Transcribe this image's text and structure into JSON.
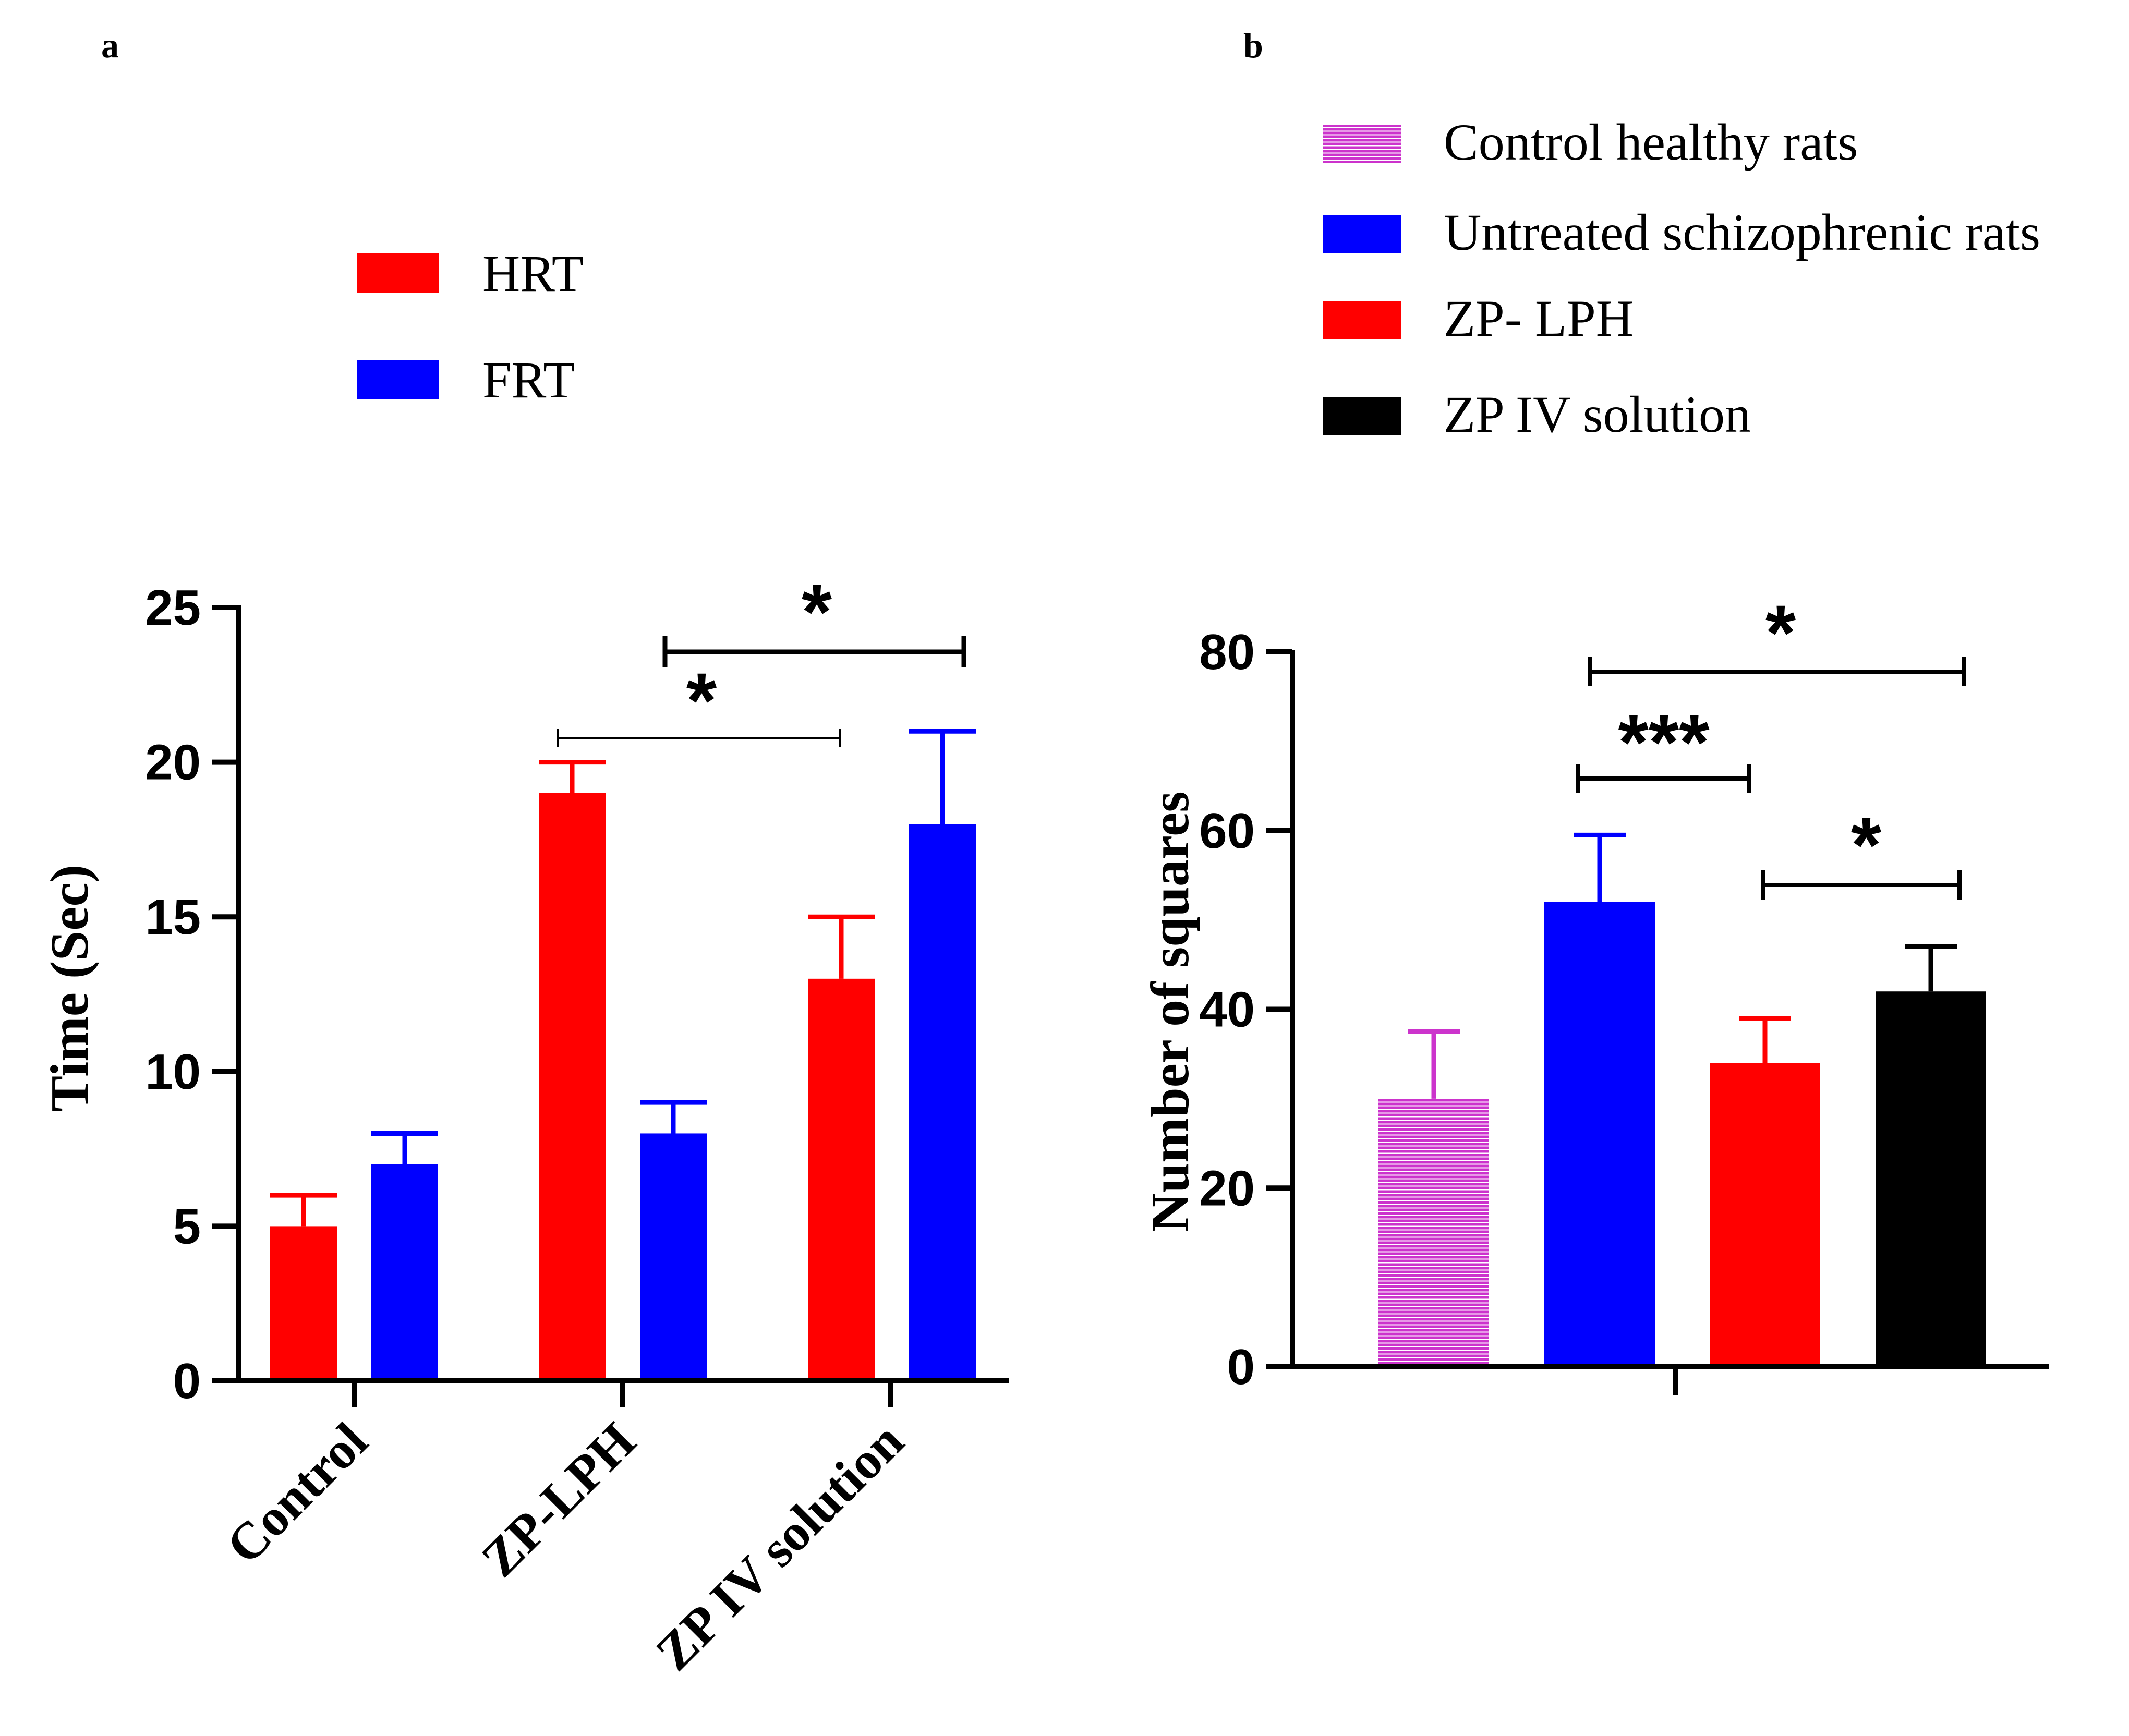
{
  "panels": {
    "a": {
      "letter": "a"
    },
    "b": {
      "letter": "b"
    }
  },
  "colors": {
    "red": "#ff0000",
    "blue": "#0000ff",
    "black": "#000000",
    "magenta": "#cc33cc"
  },
  "chart_data": [
    {
      "id": "panel-a",
      "type": "bar",
      "title": "",
      "xlabel": "",
      "ylabel": "Time (Sec)",
      "ylim": [
        0,
        25
      ],
      "yticks": [
        0,
        5,
        10,
        15,
        20,
        25
      ],
      "categories": [
        "Control",
        "ZP-LPH",
        "ZP IV solution"
      ],
      "series": [
        {
          "name": "HRT",
          "color": "#ff0000",
          "values": [
            5,
            19,
            13
          ],
          "errors": [
            1,
            1,
            2
          ]
        },
        {
          "name": "FRT",
          "color": "#0000ff",
          "values": [
            7,
            8,
            18
          ],
          "errors": [
            1,
            1,
            3
          ]
        }
      ],
      "legend": {
        "position": "top-center",
        "entries": [
          "HRT",
          "FRT"
        ]
      },
      "significance": [
        {
          "label": "*",
          "from": "ZP-LPH / HRT",
          "to": "ZP IV solution / HRT"
        },
        {
          "label": "*",
          "from": "ZP-LPH / FRT",
          "to": "ZP IV solution / FRT"
        }
      ]
    },
    {
      "id": "panel-b",
      "type": "bar",
      "title": "",
      "xlabel": "",
      "ylabel": "Number of squares",
      "ylim": [
        0,
        80
      ],
      "yticks": [
        0,
        20,
        40,
        60,
        80
      ],
      "categories": [
        "Control healthy rats",
        "Untreated schizophrenic rats",
        "ZP- LPH",
        "ZP IV solution"
      ],
      "series": [
        {
          "name": "Number of squares",
          "values": [
            30,
            52,
            34,
            42
          ],
          "errors": [
            7.5,
            7.5,
            5,
            5
          ],
          "colors": [
            "#cc33cc",
            "#0000ff",
            "#ff0000",
            "#000000"
          ],
          "patterns": [
            "hatched",
            "solid",
            "solid",
            "solid"
          ]
        }
      ],
      "legend": {
        "position": "top-right",
        "entries": [
          "Control healthy rats",
          "Untreated schizophrenic rats",
          "ZP- LPH",
          "ZP IV solution"
        ]
      },
      "significance": [
        {
          "label": "***",
          "from": "Untreated schizophrenic rats",
          "to": "ZP- LPH"
        },
        {
          "label": "*",
          "from": "Untreated schizophrenic rats",
          "to": "ZP IV solution"
        },
        {
          "label": "*",
          "from": "ZP- LPH",
          "to": "ZP IV solution"
        }
      ]
    }
  ]
}
